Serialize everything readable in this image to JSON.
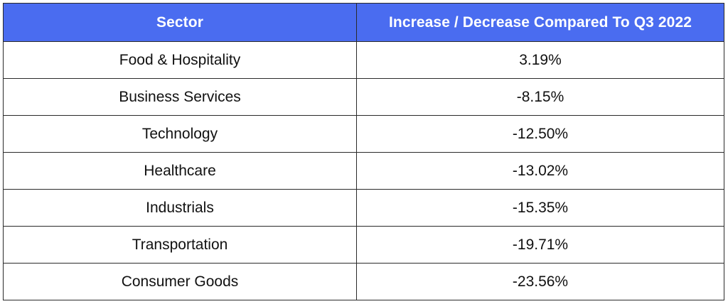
{
  "chart_data": {
    "type": "table",
    "columns": [
      "Sector",
      "Increase / Decrease Compared To Q3 2022"
    ],
    "rows": [
      {
        "sector": "Food & Hospitality",
        "change": "3.19%",
        "value": 3.19
      },
      {
        "sector": "Business Services",
        "change": "-8.15%",
        "value": -8.15
      },
      {
        "sector": "Technology",
        "change": "-12.50%",
        "value": -12.5
      },
      {
        "sector": "Healthcare",
        "change": "-13.02%",
        "value": -13.02
      },
      {
        "sector": "Industrials",
        "change": "-15.35%",
        "value": -15.35
      },
      {
        "sector": "Transportation",
        "change": "-19.71%",
        "value": -19.71
      },
      {
        "sector": "Consumer Goods",
        "change": "-23.56%",
        "value": -23.56
      }
    ]
  },
  "colors": {
    "header_bg": "#4a6cf0",
    "header_text": "#ffffff",
    "border": "#2a2a2a"
  }
}
